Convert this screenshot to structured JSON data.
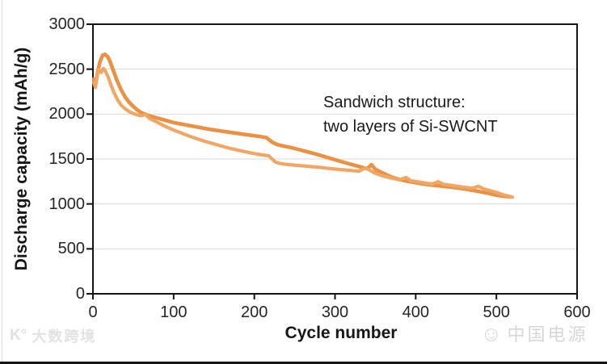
{
  "colors": {
    "accent_orange": "#EA9143",
    "accent_orange_light": "#F0A765",
    "grid": "#D9D9D9",
    "axis": "#141414",
    "text": "#1F1F1F",
    "watermark": "#DCDCDC"
  },
  "watermarks": {
    "left_logo": "K°",
    "left_text": "大数跨境",
    "right_icon": "smiley-face",
    "right_text": "中国电源"
  },
  "chart_data": {
    "type": "line",
    "title": "",
    "xlabel": "Cycle number",
    "ylabel": "Discharge capacity (mAh/g)",
    "xlim": [
      0,
      600
    ],
    "ylim": [
      0,
      3000
    ],
    "xticks": [
      0,
      100,
      200,
      300,
      400,
      500,
      600
    ],
    "yticks": [
      0,
      500,
      1000,
      1500,
      2000,
      2500,
      3000
    ],
    "grid": "horizontal-only",
    "legend": "none",
    "annotation": {
      "lines": [
        "Sandwich structure:",
        "two layers of Si-SWCNT"
      ]
    },
    "series": [
      {
        "name": "si-swcnt-sandwich-trace-1",
        "color": "#EA9143",
        "x": [
          1,
          3,
          6,
          9,
          12,
          15,
          18,
          21,
          25,
          30,
          35,
          40,
          45,
          50,
          55,
          60,
          70,
          80,
          90,
          100,
          115,
          130,
          145,
          160,
          175,
          190,
          205,
          215,
          222,
          228,
          236,
          245,
          255,
          265,
          275,
          285,
          295,
          305,
          315,
          325,
          333,
          340,
          345,
          350,
          360,
          370,
          380,
          390,
          400,
          410,
          420,
          430,
          440,
          450,
          460,
          470,
          480,
          490,
          500,
          510,
          518
        ],
        "y": [
          2390,
          2310,
          2480,
          2590,
          2655,
          2665,
          2640,
          2590,
          2490,
          2370,
          2270,
          2190,
          2130,
          2085,
          2045,
          2015,
          1980,
          1955,
          1930,
          1905,
          1880,
          1855,
          1830,
          1810,
          1790,
          1770,
          1752,
          1738,
          1688,
          1662,
          1645,
          1628,
          1605,
          1582,
          1558,
          1532,
          1505,
          1478,
          1452,
          1428,
          1408,
          1390,
          1438,
          1385,
          1340,
          1300,
          1272,
          1252,
          1237,
          1222,
          1210,
          1200,
          1190,
          1180,
          1168,
          1152,
          1136,
          1118,
          1098,
          1085,
          1078
        ]
      },
      {
        "name": "si-swcnt-sandwich-trace-2",
        "color": "#F0A765",
        "x": [
          1,
          3,
          5,
          7,
          10,
          13,
          16,
          19,
          22,
          26,
          30,
          35,
          40,
          45,
          50,
          55,
          60,
          65,
          70,
          80,
          90,
          100,
          110,
          120,
          130,
          140,
          150,
          160,
          170,
          180,
          190,
          200,
          210,
          218,
          226,
          232,
          240,
          250,
          260,
          270,
          280,
          290,
          300,
          310,
          320,
          330,
          338,
          344,
          350,
          360,
          370,
          380,
          388,
          394,
          400,
          410,
          420,
          428,
          434,
          440,
          450,
          460,
          470,
          478,
          484,
          490,
          500,
          510,
          520
        ],
        "y": [
          2350,
          2295,
          2420,
          2500,
          2462,
          2508,
          2468,
          2408,
          2330,
          2240,
          2168,
          2100,
          2058,
          2028,
          2005,
          1990,
          1982,
          1995,
          1952,
          1908,
          1862,
          1822,
          1788,
          1752,
          1722,
          1693,
          1668,
          1643,
          1618,
          1598,
          1578,
          1560,
          1545,
          1535,
          1468,
          1450,
          1440,
          1432,
          1424,
          1416,
          1408,
          1398,
          1388,
          1380,
          1372,
          1365,
          1402,
          1372,
          1340,
          1310,
          1288,
          1268,
          1295,
          1258,
          1250,
          1235,
          1222,
          1248,
          1218,
          1212,
          1198,
          1186,
          1175,
          1196,
          1168,
          1152,
          1128,
          1098,
          1075
        ]
      }
    ]
  }
}
